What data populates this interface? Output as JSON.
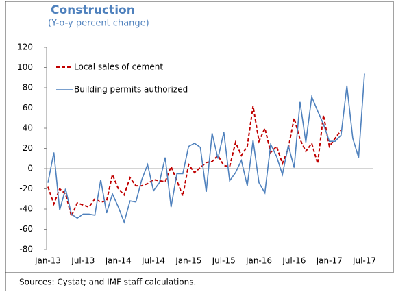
{
  "chart_data": {
    "type": "line",
    "title": "Construction",
    "subtitle": "(Y-o-y percent change)",
    "source": "Sources: Cystat; and IMF staff calculations.",
    "categories": [
      "Jan-13",
      null,
      null,
      null,
      null,
      null,
      "Jul-13",
      null,
      null,
      null,
      null,
      null,
      "Jan-14",
      null,
      null,
      null,
      null,
      null,
      "Jul-14",
      null,
      null,
      null,
      null,
      null,
      "Jan-15",
      null,
      null,
      null,
      null,
      null,
      "Jul-15",
      null,
      null,
      null,
      null,
      null,
      "Jan-16",
      null,
      null,
      null,
      null,
      null,
      "Jul-16",
      null,
      null,
      null,
      null,
      null,
      "Jan-17",
      null,
      null,
      null,
      null,
      null,
      "Jul-17"
    ],
    "series": [
      {
        "name": "Local sales of cement",
        "color": "#c00000",
        "dashed": true,
        "values": [
          -18,
          -35,
          -20,
          -25,
          -47,
          -34,
          -36,
          -38,
          -30,
          -33,
          -32,
          -6,
          -20,
          -26,
          -9,
          -17,
          -17,
          -15,
          -11,
          -12,
          -13,
          2,
          -12,
          -27,
          4,
          -4,
          1,
          6,
          7,
          13,
          3,
          2,
          26,
          13,
          22,
          62,
          27,
          40,
          16,
          22,
          5,
          20,
          50,
          29,
          17,
          25,
          5,
          53,
          22,
          30,
          38,
          null,
          null,
          null,
          null
        ]
      },
      {
        "name": "Building permits authorized",
        "color": "#4f81bd",
        "dashed": false,
        "values": [
          -14,
          16,
          -41,
          -20,
          -45,
          -49,
          -45,
          -45,
          -46,
          -11,
          -44,
          -25,
          -38,
          -53,
          -32,
          -33,
          -11,
          4,
          -22,
          -14,
          11,
          -38,
          -5,
          -5,
          22,
          25,
          21,
          -23,
          35,
          10,
          36,
          -12,
          -4,
          8,
          -17,
          28,
          -14,
          -24,
          24,
          12,
          -6,
          23,
          1,
          66,
          26,
          71,
          57,
          44,
          27,
          27,
          33,
          82,
          30,
          11,
          94
        ]
      }
    ],
    "ylim": [
      -80,
      120
    ],
    "yticks": [
      -80,
      -60,
      -40,
      -20,
      0,
      20,
      40,
      60,
      80,
      100,
      120
    ]
  }
}
